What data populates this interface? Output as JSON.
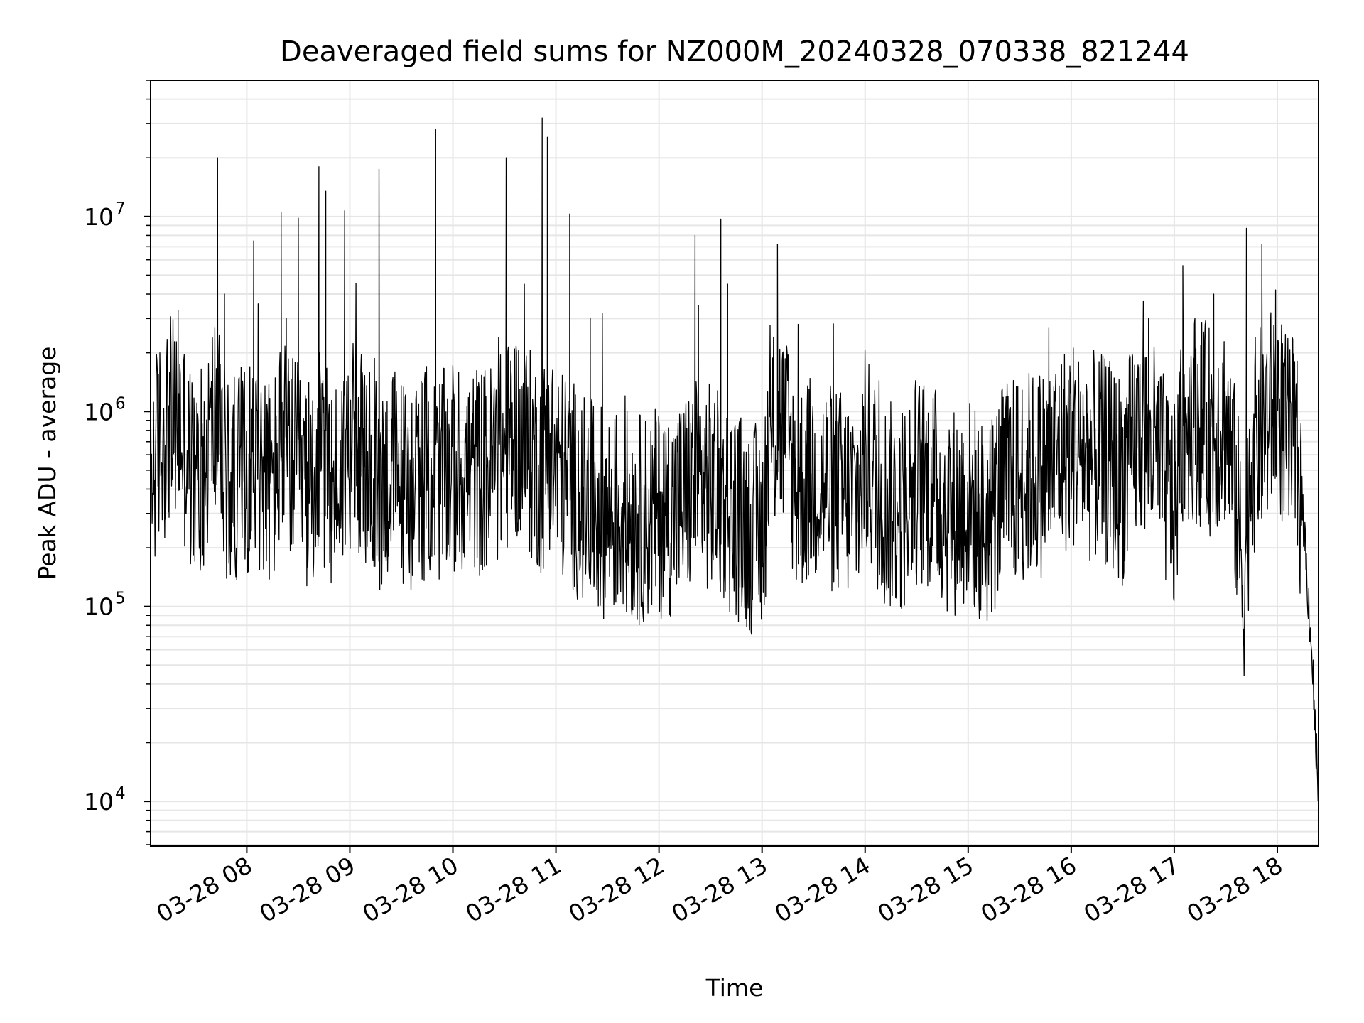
{
  "chart_data": {
    "type": "line",
    "title": "Deaveraged field sums for NZ000M_20240328_070338_821244",
    "xlabel": "Time",
    "ylabel": "Peak ADU - average",
    "yscale": "log",
    "xlim": [
      "2024-03-28 07:04",
      "2024-03-28 18:24"
    ],
    "ylim": [
      5900,
      50000000
    ],
    "x_tick_labels": [
      {
        "value": "2024-03-28 08:00",
        "label": "03-28 08"
      },
      {
        "value": "2024-03-28 09:00",
        "label": "03-28 09"
      },
      {
        "value": "2024-03-28 10:00",
        "label": "03-28 10"
      },
      {
        "value": "2024-03-28 11:00",
        "label": "03-28 11"
      },
      {
        "value": "2024-03-28 12:00",
        "label": "03-28 12"
      },
      {
        "value": "2024-03-28 13:00",
        "label": "03-28 13"
      },
      {
        "value": "2024-03-28 14:00",
        "label": "03-28 14"
      },
      {
        "value": "2024-03-28 15:00",
        "label": "03-28 15"
      },
      {
        "value": "2024-03-28 16:00",
        "label": "03-28 16"
      },
      {
        "value": "2024-03-28 17:00",
        "label": "03-28 17"
      },
      {
        "value": "2024-03-28 18:00",
        "label": "03-28 18"
      }
    ],
    "y_tick_labels": [
      {
        "value": 10000,
        "base": "10",
        "exp": "4"
      },
      {
        "value": 100000,
        "base": "10",
        "exp": "5"
      },
      {
        "value": 1000000,
        "base": "10",
        "exp": "6"
      },
      {
        "value": 10000000,
        "base": "10",
        "exp": "7"
      }
    ],
    "grid": true,
    "line_color": "#000000",
    "grid_color": "#e6e6e6",
    "series": [
      {
        "values_note": "approximate envelope of the depicted trace",
        "x": [
          "2024-03-28 07:04",
          "2024-03-28 07:08",
          "2024-03-28 07:15",
          "2024-03-28 07:22",
          "2024-03-28 07:30",
          "2024-03-28 07:36",
          "2024-03-28 07:42",
          "2024-03-28 07:45",
          "2024-03-28 07:50",
          "2024-03-28 07:55",
          "2024-03-28 08:00",
          "2024-03-28 08:05",
          "2024-03-28 08:15",
          "2024-03-28 08:20",
          "2024-03-28 08:30",
          "2024-03-28 08:35",
          "2024-03-28 08:42",
          "2024-03-28 08:50",
          "2024-03-28 08:55",
          "2024-03-28 09:00",
          "2024-03-28 09:10",
          "2024-03-28 09:17",
          "2024-03-28 09:25",
          "2024-03-28 09:35",
          "2024-03-28 09:45",
          "2024-03-28 09:50",
          "2024-03-28 10:00",
          "2024-03-28 10:10",
          "2024-03-28 10:20",
          "2024-03-28 10:30",
          "2024-03-28 10:36",
          "2024-03-28 10:45",
          "2024-03-28 10:52",
          "2024-03-28 10:56",
          "2024-03-28 11:00",
          "2024-03-28 11:08",
          "2024-03-28 11:15",
          "2024-03-28 11:30",
          "2024-03-28 11:40",
          "2024-03-28 11:50",
          "2024-03-28 12:00",
          "2024-03-28 12:10",
          "2024-03-28 12:24",
          "2024-03-28 12:30",
          "2024-03-28 12:45",
          "2024-03-28 12:52",
          "2024-03-28 13:00",
          "2024-03-28 13:05",
          "2024-03-28 13:10",
          "2024-03-28 13:15",
          "2024-03-28 13:20",
          "2024-03-28 13:30",
          "2024-03-28 13:40",
          "2024-03-28 13:55",
          "2024-03-28 14:00",
          "2024-03-28 14:10",
          "2024-03-28 14:20",
          "2024-03-28 14:30",
          "2024-03-28 14:40",
          "2024-03-28 14:50",
          "2024-03-28 15:00",
          "2024-03-28 15:10",
          "2024-03-28 15:20",
          "2024-03-28 15:30",
          "2024-03-28 15:45",
          "2024-03-28 16:00",
          "2024-03-28 16:10",
          "2024-03-28 16:20",
          "2024-03-28 16:30",
          "2024-03-28 16:40",
          "2024-03-28 16:50",
          "2024-03-28 17:00",
          "2024-03-28 17:05",
          "2024-03-28 17:10",
          "2024-03-28 17:20",
          "2024-03-28 17:30",
          "2024-03-28 17:37",
          "2024-03-28 17:40",
          "2024-03-28 17:45",
          "2024-03-28 17:50",
          "2024-03-28 17:55",
          "2024-03-28 18:00",
          "2024-03-28 18:05",
          "2024-03-28 18:10",
          "2024-03-28 18:15",
          "2024-03-28 18:20",
          "2024-03-28 18:24"
        ],
        "values": [
          450000,
          650000,
          900000,
          800000,
          400000,
          600000,
          1000000,
          600000,
          400000,
          500000,
          500000,
          600000,
          400000,
          700000,
          500000,
          400000,
          600000,
          400000,
          500000,
          700000,
          500000,
          400000,
          500000,
          400000,
          500000,
          450000,
          500000,
          500000,
          500000,
          600000,
          800000,
          600000,
          500000,
          700000,
          500000,
          450000,
          350000,
          300000,
          300000,
          280000,
          300000,
          320000,
          450000,
          400000,
          300000,
          250000,
          250000,
          700000,
          900000,
          700000,
          400000,
          450000,
          400000,
          350000,
          600000,
          350000,
          300000,
          450000,
          400000,
          300000,
          350000,
          250000,
          400000,
          450000,
          500000,
          700000,
          600000,
          550000,
          450000,
          800000,
          600000,
          300000,
          900000,
          1000000,
          800000,
          900000,
          300000,
          120000,
          600000,
          800000,
          900000,
          1200000,
          700000,
          700000,
          300000,
          60000,
          10000
        ]
      }
    ],
    "spikes": {
      "x": [
        "2024-03-28 07:20",
        "2024-03-28 07:43",
        "2024-03-28 07:47",
        "2024-03-28 08:04",
        "2024-03-28 08:20",
        "2024-03-28 08:23",
        "2024-03-28 08:30",
        "2024-03-28 08:42",
        "2024-03-28 08:46",
        "2024-03-28 08:57",
        "2024-03-28 09:17",
        "2024-03-28 09:50",
        "2024-03-28 10:31",
        "2024-03-28 10:52",
        "2024-03-28 10:55",
        "2024-03-28 11:08",
        "2024-03-28 11:20",
        "2024-03-28 11:27",
        "2024-03-28 12:21",
        "2024-03-28 12:23",
        "2024-03-28 12:36",
        "2024-03-28 12:40",
        "2024-03-28 13:09",
        "2024-03-28 13:21",
        "2024-03-28 15:47",
        "2024-03-28 16:45",
        "2024-03-28 17:05",
        "2024-03-28 17:23",
        "2024-03-28 17:42",
        "2024-03-28 17:51",
        "2024-03-28 17:59"
      ],
      "values": [
        3300000,
        20000000,
        4000000,
        7500000,
        10500000,
        3000000,
        9800000,
        18000000,
        13500000,
        10700000,
        17500000,
        28000000,
        20000000,
        32000000,
        25500000,
        10300000,
        3000000,
        3200000,
        8000000,
        3500000,
        9700000,
        4500000,
        7200000,
        2800000,
        2700000,
        3000000,
        5600000,
        4000000,
        8700000,
        7200000,
        4200000
      ]
    }
  }
}
